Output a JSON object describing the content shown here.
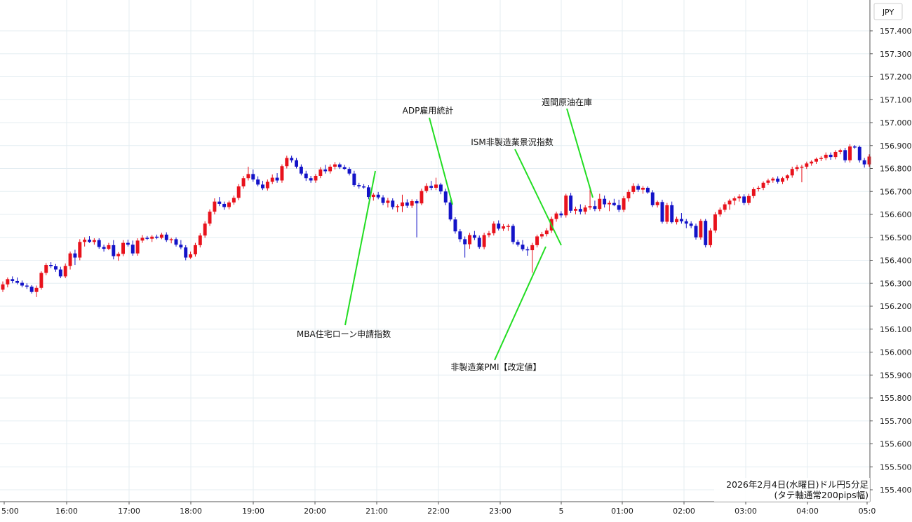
{
  "chart_data": {
    "type": "candlestick",
    "unit_label": "JPY",
    "caption": {
      "line1": "2026年2月4日(水曜日)ドル円5分足",
      "line2": "(タテ軸通常200pips幅)"
    },
    "ylim": [
      155.35,
      157.5
    ],
    "y_ticks": [
      "157.400",
      "157.300",
      "157.200",
      "157.100",
      "157.000",
      "156.900",
      "156.800",
      "156.700",
      "156.600",
      "156.500",
      "156.400",
      "156.300",
      "156.200",
      "156.100",
      "156.000",
      "155.900",
      "155.800",
      "155.700",
      "155.600",
      "155.500",
      "155.400"
    ],
    "x_ticks": [
      "5:00",
      "16:00",
      "17:00",
      "18:00",
      "19:00",
      "20:00",
      "21:00",
      "22:00",
      "23:00",
      "5",
      "01:00",
      "02:00",
      "03:00",
      "04:00",
      "05:0"
    ],
    "up_color": "#e8121c",
    "down_color": "#1313c8",
    "annotation_line_color": "#22dd22",
    "grid": true,
    "candles": [
      [
        156.272,
        156.308,
        156.262,
        156.295
      ],
      [
        156.295,
        156.325,
        156.282,
        156.318
      ],
      [
        156.318,
        156.33,
        156.3,
        156.31
      ],
      [
        156.31,
        156.325,
        156.295,
        156.302
      ],
      [
        156.302,
        156.312,
        156.282,
        156.29
      ],
      [
        156.29,
        156.3,
        156.275,
        156.285
      ],
      [
        156.285,
        156.292,
        156.255,
        156.262
      ],
      [
        156.262,
        156.29,
        156.24,
        156.28
      ],
      [
        156.28,
        156.352,
        156.272,
        156.345
      ],
      [
        156.345,
        156.388,
        156.335,
        156.38
      ],
      [
        156.38,
        156.392,
        156.366,
        156.374
      ],
      [
        156.374,
        156.384,
        156.35,
        156.36
      ],
      [
        156.36,
        156.372,
        156.322,
        156.33
      ],
      [
        156.33,
        156.386,
        156.322,
        156.375
      ],
      [
        156.375,
        156.438,
        156.36,
        156.43
      ],
      [
        156.43,
        156.446,
        156.38,
        156.412
      ],
      [
        156.412,
        156.492,
        156.4,
        156.48
      ],
      [
        156.48,
        156.5,
        156.46,
        156.49
      ],
      [
        156.49,
        156.505,
        156.476,
        156.48
      ],
      [
        156.48,
        156.496,
        156.468,
        156.488
      ],
      [
        156.488,
        156.496,
        156.45,
        156.458
      ],
      [
        156.458,
        156.468,
        156.438,
        156.45
      ],
      [
        156.45,
        156.476,
        156.444,
        156.466
      ],
      [
        156.466,
        156.488,
        156.404,
        156.418
      ],
      [
        156.418,
        156.436,
        156.398,
        156.428
      ],
      [
        156.428,
        156.488,
        156.418,
        156.476
      ],
      [
        156.476,
        156.49,
        156.46,
        156.468
      ],
      [
        156.468,
        156.486,
        156.42,
        156.43
      ],
      [
        156.43,
        156.496,
        156.42,
        156.486
      ],
      [
        156.486,
        156.51,
        156.476,
        156.498
      ],
      [
        156.498,
        156.506,
        156.488,
        156.494
      ],
      [
        156.494,
        156.51,
        156.48,
        156.503
      ],
      [
        156.503,
        156.512,
        156.492,
        156.498
      ],
      [
        156.498,
        156.52,
        156.492,
        156.512
      ],
      [
        156.512,
        156.522,
        156.48,
        156.488
      ],
      [
        156.488,
        156.498,
        156.474,
        156.492
      ],
      [
        156.492,
        156.5,
        156.46,
        156.468
      ],
      [
        156.468,
        156.488,
        156.448,
        156.456
      ],
      [
        156.456,
        156.466,
        156.4,
        156.412
      ],
      [
        156.412,
        156.438,
        156.406,
        156.426
      ],
      [
        156.426,
        156.476,
        156.416,
        156.466
      ],
      [
        156.466,
        156.518,
        156.456,
        156.508
      ],
      [
        156.508,
        156.57,
        156.498,
        156.56
      ],
      [
        156.56,
        156.622,
        156.55,
        156.612
      ],
      [
        156.612,
        156.67,
        156.6,
        156.656
      ],
      [
        156.656,
        156.676,
        156.636,
        156.646
      ],
      [
        156.646,
        156.656,
        156.62,
        156.632
      ],
      [
        156.632,
        156.66,
        156.622,
        156.652
      ],
      [
        156.652,
        156.682,
        156.642,
        156.672
      ],
      [
        156.672,
        156.732,
        156.662,
        156.722
      ],
      [
        156.722,
        156.768,
        156.712,
        156.758
      ],
      [
        156.758,
        156.808,
        156.748,
        156.776
      ],
      [
        156.776,
        156.796,
        156.742,
        156.752
      ],
      [
        156.752,
        156.766,
        156.722,
        156.73
      ],
      [
        156.73,
        156.746,
        156.706,
        156.714
      ],
      [
        156.714,
        156.752,
        156.704,
        156.742
      ],
      [
        156.742,
        156.774,
        156.732,
        156.76
      ],
      [
        156.76,
        156.78,
        156.738,
        156.748
      ],
      [
        156.748,
        156.818,
        156.738,
        156.81
      ],
      [
        156.81,
        156.856,
        156.8,
        156.846
      ],
      [
        156.846,
        156.856,
        156.826,
        156.836
      ],
      [
        156.836,
        156.846,
        156.8,
        156.808
      ],
      [
        156.808,
        156.818,
        156.77,
        156.778
      ],
      [
        156.778,
        156.79,
        156.746,
        156.758
      ],
      [
        156.758,
        156.768,
        156.738,
        156.748
      ],
      [
        156.748,
        156.776,
        156.738,
        156.768
      ],
      [
        156.768,
        156.806,
        156.758,
        156.796
      ],
      [
        156.796,
        156.816,
        156.778,
        156.788
      ],
      [
        156.788,
        156.818,
        156.778,
        156.808
      ],
      [
        156.808,
        156.828,
        156.796,
        156.818
      ],
      [
        156.818,
        156.826,
        156.798,
        156.806
      ],
      [
        156.806,
        156.816,
        156.794,
        156.798
      ],
      [
        156.798,
        156.806,
        156.77,
        156.778
      ],
      [
        156.778,
        156.79,
        156.72,
        156.728
      ],
      [
        156.728,
        156.738,
        156.712,
        156.722
      ],
      [
        156.722,
        156.732,
        156.712,
        156.718
      ],
      [
        156.718,
        156.728,
        156.666,
        156.676
      ],
      [
        156.676,
        156.694,
        156.66,
        156.686
      ],
      [
        156.686,
        156.698,
        156.666,
        156.674
      ],
      [
        156.674,
        156.684,
        156.64,
        156.65
      ],
      [
        156.65,
        156.672,
        156.63,
        156.66
      ],
      [
        156.66,
        156.67,
        156.622,
        156.632
      ],
      [
        156.632,
        156.644,
        156.61,
        156.636
      ],
      [
        156.636,
        156.686,
        156.61,
        156.652
      ],
      [
        156.652,
        156.666,
        156.628,
        156.638
      ],
      [
        156.638,
        156.666,
        156.628,
        156.658
      ],
      [
        156.658,
        156.666,
        156.5,
        156.648
      ],
      [
        156.648,
        156.712,
        156.64,
        156.702
      ],
      [
        156.702,
        156.736,
        156.694,
        156.724
      ],
      [
        156.724,
        156.746,
        156.706,
        156.716
      ],
      [
        156.716,
        156.76,
        156.706,
        156.73
      ],
      [
        156.73,
        156.738,
        156.688,
        156.7
      ],
      [
        156.7,
        156.712,
        156.64,
        156.652
      ],
      [
        156.652,
        156.662,
        156.57,
        156.578
      ],
      [
        156.578,
        156.588,
        156.516,
        156.526
      ],
      [
        156.526,
        156.536,
        156.48,
        156.492
      ],
      [
        156.492,
        156.504,
        156.412,
        156.47
      ],
      [
        156.47,
        156.52,
        156.45,
        156.51
      ],
      [
        156.51,
        156.528,
        156.488,
        156.498
      ],
      [
        156.498,
        156.508,
        156.45,
        156.458
      ],
      [
        156.458,
        156.52,
        156.448,
        156.51
      ],
      [
        156.51,
        156.528,
        156.5,
        156.518
      ],
      [
        156.518,
        156.57,
        156.508,
        156.56
      ],
      [
        156.56,
        156.574,
        156.53,
        156.538
      ],
      [
        156.538,
        156.558,
        156.528,
        156.548
      ],
      [
        156.548,
        156.558,
        156.528,
        156.55
      ],
      [
        156.55,
        156.558,
        156.47,
        156.48
      ],
      [
        156.48,
        156.49,
        156.46,
        156.468
      ],
      [
        156.468,
        156.488,
        156.44,
        156.448
      ],
      [
        156.448,
        156.46,
        156.42,
        156.444
      ],
      [
        156.444,
        156.476,
        156.346,
        156.466
      ],
      [
        156.466,
        156.512,
        156.456,
        156.504
      ],
      [
        156.504,
        156.524,
        156.494,
        156.514
      ],
      [
        156.514,
        156.54,
        156.504,
        156.53
      ],
      [
        156.53,
        156.59,
        156.52,
        156.58
      ],
      [
        156.58,
        156.612,
        156.568,
        156.604
      ],
      [
        156.604,
        156.614,
        156.586,
        156.596
      ],
      [
        156.596,
        156.69,
        156.586,
        156.682
      ],
      [
        156.682,
        156.694,
        156.606,
        156.616
      ],
      [
        156.616,
        156.634,
        156.6,
        156.624
      ],
      [
        156.624,
        156.644,
        156.6,
        156.612
      ],
      [
        156.612,
        156.64,
        156.6,
        156.63
      ],
      [
        156.63,
        156.71,
        156.62,
        156.636
      ],
      [
        156.636,
        156.66,
        156.614,
        156.624
      ],
      [
        156.624,
        156.69,
        156.614,
        156.668
      ],
      [
        156.668,
        156.682,
        156.63,
        156.644
      ],
      [
        156.644,
        156.66,
        156.614,
        156.65
      ],
      [
        156.65,
        156.668,
        156.636,
        156.64
      ],
      [
        156.64,
        156.664,
        156.61,
        156.62
      ],
      [
        156.62,
        156.68,
        156.61,
        156.67
      ],
      [
        156.67,
        156.708,
        156.656,
        156.698
      ],
      [
        156.698,
        156.736,
        156.688,
        156.724
      ],
      [
        156.724,
        156.734,
        156.698,
        156.708
      ],
      [
        156.708,
        156.724,
        156.69,
        156.716
      ],
      [
        156.716,
        156.722,
        156.69,
        156.696
      ],
      [
        156.696,
        156.706,
        156.632,
        156.64
      ],
      [
        156.64,
        156.66,
        156.63,
        156.654
      ],
      [
        156.654,
        156.664,
        156.56,
        156.568
      ],
      [
        156.568,
        156.65,
        156.558,
        156.64
      ],
      [
        156.64,
        156.656,
        156.56,
        156.566
      ],
      [
        156.566,
        156.59,
        156.556,
        156.58
      ],
      [
        156.58,
        156.606,
        156.56,
        156.57
      ],
      [
        156.57,
        156.58,
        156.54,
        156.56
      ],
      [
        156.56,
        156.57,
        156.54,
        156.55
      ],
      [
        156.55,
        156.56,
        156.49,
        156.5
      ],
      [
        156.5,
        156.58,
        156.49,
        156.572
      ],
      [
        156.572,
        156.58,
        156.456,
        156.466
      ],
      [
        156.466,
        156.54,
        156.456,
        156.53
      ],
      [
        156.53,
        156.61,
        156.52,
        156.6
      ],
      [
        156.6,
        156.63,
        156.59,
        156.62
      ],
      [
        156.62,
        156.654,
        156.61,
        156.644
      ],
      [
        156.644,
        156.668,
        156.62,
        156.66
      ],
      [
        156.66,
        156.678,
        156.64,
        156.67
      ],
      [
        156.67,
        156.688,
        156.656,
        156.678
      ],
      [
        156.678,
        156.688,
        156.64,
        156.65
      ],
      [
        156.65,
        156.69,
        156.64,
        156.68
      ],
      [
        156.68,
        156.718,
        156.67,
        156.71
      ],
      [
        156.71,
        156.724,
        156.7,
        156.716
      ],
      [
        156.716,
        156.744,
        156.706,
        156.738
      ],
      [
        156.738,
        156.756,
        156.728,
        156.748
      ],
      [
        156.748,
        156.762,
        156.738,
        156.756
      ],
      [
        156.756,
        156.766,
        156.734,
        156.742
      ],
      [
        156.742,
        156.764,
        156.732,
        156.758
      ],
      [
        156.758,
        156.774,
        156.748,
        156.77
      ],
      [
        156.77,
        156.808,
        156.76,
        156.798
      ],
      [
        156.798,
        156.816,
        156.788,
        156.806
      ],
      [
        156.806,
        156.816,
        156.74,
        156.808
      ],
      [
        156.808,
        156.83,
        156.798,
        156.822
      ],
      [
        156.822,
        156.836,
        156.812,
        156.83
      ],
      [
        156.83,
        156.848,
        156.82,
        156.842
      ],
      [
        156.842,
        156.854,
        156.832,
        156.846
      ],
      [
        156.846,
        156.87,
        156.836,
        156.86
      ],
      [
        156.86,
        156.87,
        156.838,
        156.85
      ],
      [
        156.85,
        156.88,
        156.84,
        156.872
      ],
      [
        156.872,
        156.886,
        156.862,
        156.88
      ],
      [
        156.88,
        156.89,
        156.826,
        156.836
      ],
      [
        156.836,
        156.906,
        156.826,
        156.896
      ],
      [
        156.896,
        156.902,
        156.886,
        156.894
      ],
      [
        156.894,
        156.9,
        156.826,
        156.836
      ],
      [
        156.836,
        156.846,
        156.804,
        156.818
      ],
      [
        156.818,
        156.862,
        156.808,
        156.852
      ]
    ],
    "annotations": [
      {
        "label": "ADP雇用統計"
      },
      {
        "label": "週間原油在庫"
      },
      {
        "label": "ISM非製造業景況指数"
      },
      {
        "label": "MBA住宅ローン申請指数"
      },
      {
        "label": "非製造業PMI【改定値】"
      }
    ]
  }
}
